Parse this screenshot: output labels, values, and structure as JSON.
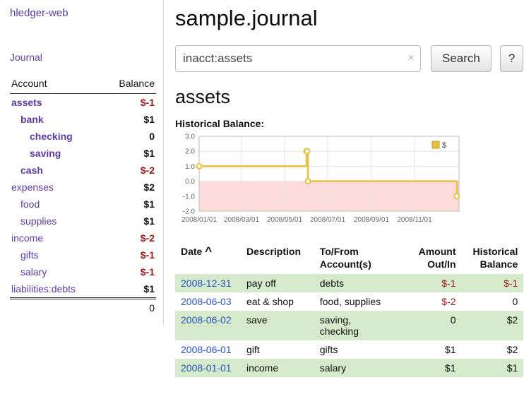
{
  "colors": {
    "link_purple": "#5f3a9f",
    "link_blue": "#2a52be",
    "negative": "#9c1b1b",
    "row_green": "#d6ebcc"
  },
  "sidebar": {
    "app_title": "hledger-web",
    "nav": [
      {
        "label": "Journal"
      }
    ],
    "table": {
      "headers": [
        "Account",
        "Balance"
      ],
      "rows": [
        {
          "account": "assets",
          "balance": "$-1",
          "indent": 0,
          "bold": true,
          "neg": true
        },
        {
          "account": "bank",
          "balance": "$1",
          "indent": 1,
          "bold": true,
          "neg": false
        },
        {
          "account": "checking",
          "balance": "0",
          "indent": 2,
          "bold": true,
          "neg": false
        },
        {
          "account": "saving",
          "balance": "$1",
          "indent": 2,
          "bold": true,
          "neg": false
        },
        {
          "account": "cash",
          "balance": "$-2",
          "indent": 1,
          "bold": true,
          "neg": true
        },
        {
          "account": "expenses",
          "balance": "$2",
          "indent": 0,
          "bold": false,
          "neg": false
        },
        {
          "account": "food",
          "balance": "$1",
          "indent": 1,
          "bold": false,
          "neg": false
        },
        {
          "account": "supplies",
          "balance": "$1",
          "indent": 1,
          "bold": false,
          "neg": false
        },
        {
          "account": "income",
          "balance": "$-2",
          "indent": 0,
          "bold": false,
          "neg": true
        },
        {
          "account": "gifts",
          "balance": "$-1",
          "indent": 1,
          "bold": false,
          "neg": true
        },
        {
          "account": "salary",
          "balance": "$-1",
          "indent": 1,
          "bold": false,
          "neg": true
        },
        {
          "account": "liabilities:debts",
          "balance": "$1",
          "indent": 0,
          "bold": false,
          "neg": false
        }
      ],
      "total": "0"
    }
  },
  "main": {
    "title": "sample.journal",
    "search": {
      "value": "inacct:assets",
      "clear_icon": "×",
      "button": "Search",
      "help_button": "?"
    },
    "account_heading": "assets",
    "chart_title": "Historical Balance:"
  },
  "chart_data": {
    "type": "line",
    "title": "Historical Balance",
    "xlabel": "",
    "ylabel": "",
    "step": true,
    "grid": true,
    "legend": [
      {
        "label": "$",
        "color": "#e7c13f",
        "swatch_border": "#c19b22"
      }
    ],
    "legend_position": "top-right",
    "line_color": "#e7c13f",
    "negative_bg": "#ffdcdc",
    "ylim": [
      -2,
      3
    ],
    "ytick_values": [
      3,
      2,
      1,
      0,
      -1,
      -2
    ],
    "yticks": [
      "3.0",
      "2.0",
      "1.0",
      "0.0",
      "-1.0",
      "-2.0"
    ],
    "xlim_days": [
      0,
      368
    ],
    "xticks": [
      {
        "day": 0,
        "label": "2008/01/01"
      },
      {
        "day": 60,
        "label": "2008/03/01"
      },
      {
        "day": 121,
        "label": "2008/05/01"
      },
      {
        "day": 182,
        "label": "2008/07/01"
      },
      {
        "day": 244,
        "label": "2008/09/01"
      },
      {
        "day": 305,
        "label": "2008/11/01"
      }
    ],
    "points": [
      {
        "date": "2008-01-01",
        "day": 0,
        "balance": 1
      },
      {
        "date": "2008-06-01",
        "day": 152,
        "balance": 2
      },
      {
        "date": "2008-06-02",
        "day": 153,
        "balance": 2
      },
      {
        "date": "2008-06-03",
        "day": 154,
        "balance": 0
      },
      {
        "date": "2008-12-31",
        "day": 365,
        "balance": -1
      }
    ]
  },
  "register": {
    "headers": {
      "date": "Date",
      "description": "Description",
      "account": "To/From\nAccount(s)",
      "amount": "Amount\nOut/In",
      "balance": "Historical\nBalance"
    },
    "sort_icon": "^",
    "rows": [
      {
        "date": "2008-12-31",
        "description": "pay off",
        "accounts": "debts",
        "amount": "$-1",
        "balance": "$-1",
        "amount_neg": true,
        "balance_neg": true,
        "hl": true
      },
      {
        "date": "2008-06-03",
        "description": "eat & shop",
        "accounts": "food, supplies",
        "amount": "$-2",
        "balance": "0",
        "amount_neg": true,
        "balance_neg": false,
        "hl": false
      },
      {
        "date": "2008-06-02",
        "description": "save",
        "accounts": "saving,\nchecking",
        "amount": "0",
        "balance": "$2",
        "amount_neg": false,
        "balance_neg": false,
        "hl": true
      },
      {
        "date": "2008-06-01",
        "description": "gift",
        "accounts": "gifts",
        "amount": "$1",
        "balance": "$2",
        "amount_neg": false,
        "balance_neg": false,
        "hl": false
      },
      {
        "date": "2008-01-01",
        "description": "income",
        "accounts": "salary",
        "amount": "$1",
        "balance": "$1",
        "amount_neg": false,
        "balance_neg": false,
        "hl": true
      }
    ]
  }
}
